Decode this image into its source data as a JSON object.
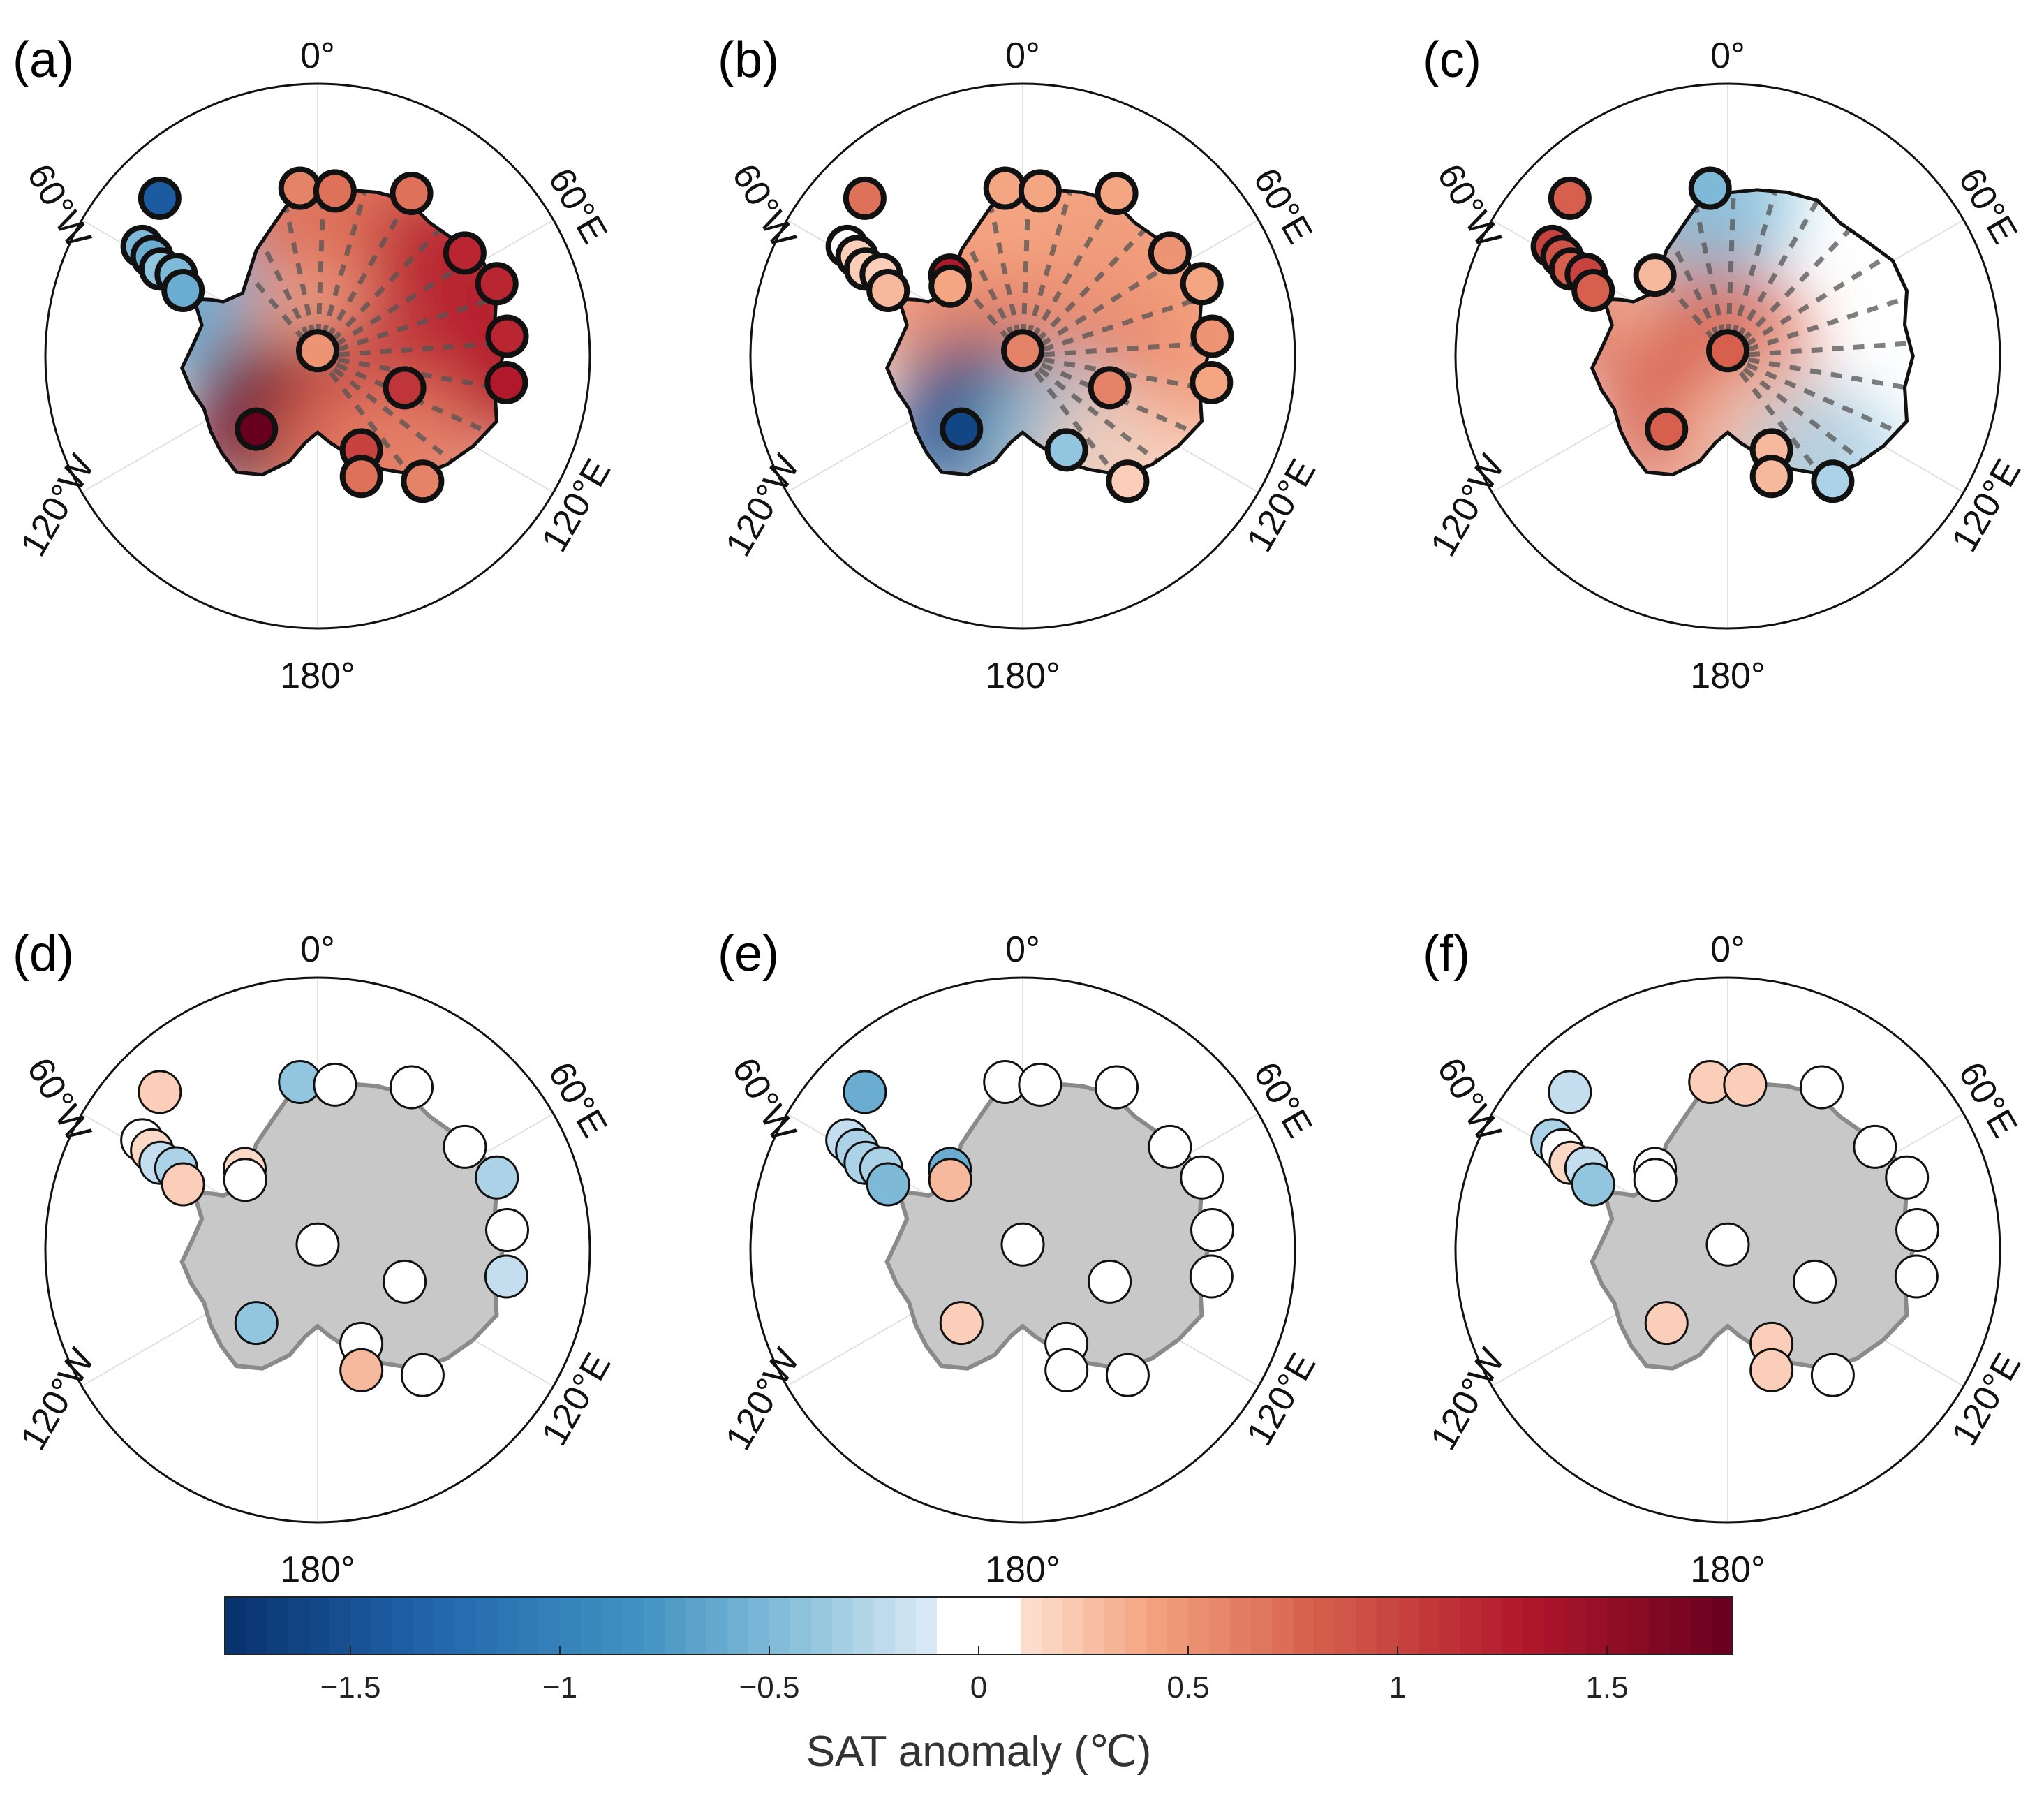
{
  "figure": {
    "description_free": true
  },
  "chart_data": {
    "type": "polar-stereographic-map-panels",
    "longitude_labels": [
      "0°",
      "60°E",
      "120°E",
      "180°",
      "120°W",
      "60°W"
    ],
    "colorbar": {
      "title": "SAT anomaly (℃)",
      "range": [
        -1.8,
        1.8
      ],
      "ticks": [
        -1.5,
        -1,
        -0.5,
        0,
        0.5,
        1,
        1.5
      ],
      "tick_labels": [
        "−1.5",
        "−1",
        "−0.5",
        "0",
        "0.5",
        "1",
        "1.5"
      ],
      "white_band": [
        -0.1,
        0.1
      ]
    },
    "panels": [
      {
        "label": "(a)",
        "style": "field",
        "field_sign": "warm-dominant",
        "stations": [
          {
            "lon": -45,
            "colat": 0.82,
            "v": -1.4
          },
          {
            "lon": -58,
            "colat": 0.76,
            "v": -0.5
          },
          {
            "lon": -59,
            "colat": 0.71,
            "v": -0.6
          },
          {
            "lon": -61,
            "colat": 0.66,
            "v": -0.4
          },
          {
            "lon": -60,
            "colat": 0.6,
            "v": -0.5
          },
          {
            "lon": -64,
            "colat": 0.55,
            "v": -0.6
          },
          {
            "lon": -6,
            "colat": 0.62,
            "v": 0.6
          },
          {
            "lon": 6,
            "colat": 0.61,
            "v": 0.7
          },
          {
            "lon": 30,
            "colat": 0.69,
            "v": 0.7
          },
          {
            "lon": 55,
            "colat": 0.66,
            "v": 1.2
          },
          {
            "lon": 68,
            "colat": 0.71,
            "v": 1.2
          },
          {
            "lon": 84,
            "colat": 0.7,
            "v": 1.2
          },
          {
            "lon": 98,
            "colat": 0.7,
            "v": 1.3
          },
          {
            "lon": 0,
            "colat": 0.02,
            "v": 0.5
          },
          {
            "lon": 110,
            "colat": 0.34,
            "v": 1.1
          },
          {
            "lon": -140,
            "colat": 0.35,
            "v": 1.8
          },
          {
            "lon": 155,
            "colat": 0.38,
            "v": 1.0
          },
          {
            "lon": 160,
            "colat": 0.47,
            "v": 0.7
          },
          {
            "lon": 140,
            "colat": 0.6,
            "v": 0.6
          }
        ]
      },
      {
        "label": "(b)",
        "style": "field",
        "field_sign": "warm-east-cold-ross",
        "stations": [
          {
            "lon": -45,
            "colat": 0.82,
            "v": 0.7
          },
          {
            "lon": -58,
            "colat": 0.76,
            "v": 0.1
          },
          {
            "lon": -59,
            "colat": 0.71,
            "v": 0.2
          },
          {
            "lon": -61,
            "colat": 0.66,
            "v": 0.2
          },
          {
            "lon": -60,
            "colat": 0.6,
            "v": 0.2
          },
          {
            "lon": -64,
            "colat": 0.55,
            "v": 0.3
          },
          {
            "lon": -42,
            "colat": 0.4,
            "v": 1.3
          },
          {
            "lon": -46,
            "colat": 0.37,
            "v": 0.4
          },
          {
            "lon": -6,
            "colat": 0.62,
            "v": 0.4
          },
          {
            "lon": 6,
            "colat": 0.61,
            "v": 0.4
          },
          {
            "lon": 30,
            "colat": 0.69,
            "v": 0.4
          },
          {
            "lon": 55,
            "colat": 0.66,
            "v": 0.5
          },
          {
            "lon": 68,
            "colat": 0.71,
            "v": 0.4
          },
          {
            "lon": 84,
            "colat": 0.7,
            "v": 0.5
          },
          {
            "lon": 98,
            "colat": 0.7,
            "v": 0.4
          },
          {
            "lon": 0,
            "colat": 0.02,
            "v": 0.6
          },
          {
            "lon": 110,
            "colat": 0.34,
            "v": 0.6
          },
          {
            "lon": -140,
            "colat": 0.35,
            "v": -1.6
          },
          {
            "lon": 155,
            "colat": 0.38,
            "v": -0.4
          },
          {
            "lon": 140,
            "colat": 0.6,
            "v": 0.2
          }
        ]
      },
      {
        "label": "(c)",
        "style": "field",
        "field_sign": "warm-peninsula-cold-east",
        "stations": [
          {
            "lon": -45,
            "colat": 0.82,
            "v": 0.8
          },
          {
            "lon": -58,
            "colat": 0.76,
            "v": 1.0
          },
          {
            "lon": -59,
            "colat": 0.71,
            "v": 0.9
          },
          {
            "lon": -61,
            "colat": 0.66,
            "v": 0.8
          },
          {
            "lon": -60,
            "colat": 0.6,
            "v": 1.0
          },
          {
            "lon": -64,
            "colat": 0.55,
            "v": 0.8
          },
          {
            "lon": -42,
            "colat": 0.4,
            "v": 0.3
          },
          {
            "lon": -6,
            "colat": 0.62,
            "v": -0.5
          },
          {
            "lon": 0,
            "colat": 0.02,
            "v": 0.8
          },
          {
            "lon": -140,
            "colat": 0.35,
            "v": 0.8
          },
          {
            "lon": 155,
            "colat": 0.38,
            "v": 0.3
          },
          {
            "lon": 160,
            "colat": 0.47,
            "v": 0.3
          },
          {
            "lon": 140,
            "colat": 0.6,
            "v": -0.3
          }
        ]
      },
      {
        "label": "(d)",
        "style": "stations",
        "stations": [
          {
            "lon": -45,
            "colat": 0.82,
            "v": 0.2
          },
          {
            "lon": -58,
            "colat": 0.76,
            "v": 0.0
          },
          {
            "lon": -59,
            "colat": 0.71,
            "v": 0.15
          },
          {
            "lon": -61,
            "colat": 0.66,
            "v": -0.2
          },
          {
            "lon": -60,
            "colat": 0.6,
            "v": -0.3
          },
          {
            "lon": -64,
            "colat": 0.55,
            "v": 0.2
          },
          {
            "lon": -42,
            "colat": 0.4,
            "v": 0.15
          },
          {
            "lon": -46,
            "colat": 0.37,
            "v": 0.0
          },
          {
            "lon": -6,
            "colat": 0.62,
            "v": -0.4
          },
          {
            "lon": 6,
            "colat": 0.61,
            "v": 0.0
          },
          {
            "lon": 30,
            "colat": 0.69,
            "v": 0.0
          },
          {
            "lon": 55,
            "colat": 0.66,
            "v": 0.0
          },
          {
            "lon": 68,
            "colat": 0.71,
            "v": -0.3
          },
          {
            "lon": 84,
            "colat": 0.7,
            "v": 0.0
          },
          {
            "lon": 98,
            "colat": 0.7,
            "v": -0.2
          },
          {
            "lon": 0,
            "colat": 0.02,
            "v": 0.0
          },
          {
            "lon": 110,
            "colat": 0.34,
            "v": 0.0
          },
          {
            "lon": -140,
            "colat": 0.35,
            "v": -0.4
          },
          {
            "lon": 155,
            "colat": 0.38,
            "v": 0.0
          },
          {
            "lon": 160,
            "colat": 0.47,
            "v": 0.3
          },
          {
            "lon": 140,
            "colat": 0.6,
            "v": 0.0
          }
        ]
      },
      {
        "label": "(e)",
        "style": "stations",
        "stations": [
          {
            "lon": -45,
            "colat": 0.82,
            "v": -0.6
          },
          {
            "lon": -58,
            "colat": 0.76,
            "v": -0.2
          },
          {
            "lon": -59,
            "colat": 0.71,
            "v": -0.3
          },
          {
            "lon": -61,
            "colat": 0.66,
            "v": -0.3
          },
          {
            "lon": -60,
            "colat": 0.6,
            "v": -0.3
          },
          {
            "lon": -64,
            "colat": 0.55,
            "v": -0.5
          },
          {
            "lon": -42,
            "colat": 0.4,
            "v": -0.6
          },
          {
            "lon": -46,
            "colat": 0.37,
            "v": 0.3
          },
          {
            "lon": -6,
            "colat": 0.62,
            "v": 0.0
          },
          {
            "lon": 6,
            "colat": 0.61,
            "v": 0.0
          },
          {
            "lon": 30,
            "colat": 0.69,
            "v": 0.0
          },
          {
            "lon": 55,
            "colat": 0.66,
            "v": 0.0
          },
          {
            "lon": 68,
            "colat": 0.71,
            "v": 0.0
          },
          {
            "lon": 84,
            "colat": 0.7,
            "v": 0.0
          },
          {
            "lon": 98,
            "colat": 0.7,
            "v": 0.0
          },
          {
            "lon": 0,
            "colat": 0.02,
            "v": 0.0
          },
          {
            "lon": 110,
            "colat": 0.34,
            "v": 0.0
          },
          {
            "lon": -140,
            "colat": 0.35,
            "v": 0.2
          },
          {
            "lon": 155,
            "colat": 0.38,
            "v": 0.0
          },
          {
            "lon": 160,
            "colat": 0.47,
            "v": 0.0
          },
          {
            "lon": 140,
            "colat": 0.6,
            "v": 0.0
          }
        ]
      },
      {
        "label": "(f)",
        "style": "stations",
        "stations": [
          {
            "lon": -45,
            "colat": 0.82,
            "v": -0.2
          },
          {
            "lon": -58,
            "colat": 0.76,
            "v": -0.3
          },
          {
            "lon": -59,
            "colat": 0.71,
            "v": 0.1
          },
          {
            "lon": -61,
            "colat": 0.66,
            "v": 0.15
          },
          {
            "lon": -60,
            "colat": 0.6,
            "v": -0.2
          },
          {
            "lon": -64,
            "colat": 0.55,
            "v": -0.4
          },
          {
            "lon": -42,
            "colat": 0.4,
            "v": 0.0
          },
          {
            "lon": -46,
            "colat": 0.37,
            "v": 0.0
          },
          {
            "lon": -6,
            "colat": 0.62,
            "v": 0.2
          },
          {
            "lon": 6,
            "colat": 0.61,
            "v": 0.2
          },
          {
            "lon": 30,
            "colat": 0.69,
            "v": 0.0
          },
          {
            "lon": 55,
            "colat": 0.66,
            "v": 0.0
          },
          {
            "lon": 68,
            "colat": 0.71,
            "v": 0.0
          },
          {
            "lon": 84,
            "colat": 0.7,
            "v": 0.0
          },
          {
            "lon": 98,
            "colat": 0.7,
            "v": 0.0
          },
          {
            "lon": 0,
            "colat": 0.02,
            "v": 0.0
          },
          {
            "lon": 110,
            "colat": 0.34,
            "v": 0.0
          },
          {
            "lon": -140,
            "colat": 0.35,
            "v": 0.2
          },
          {
            "lon": 155,
            "colat": 0.38,
            "v": 0.2
          },
          {
            "lon": 160,
            "colat": 0.47,
            "v": 0.2
          },
          {
            "lon": 140,
            "colat": 0.6,
            "v": 0.0
          }
        ]
      }
    ]
  }
}
